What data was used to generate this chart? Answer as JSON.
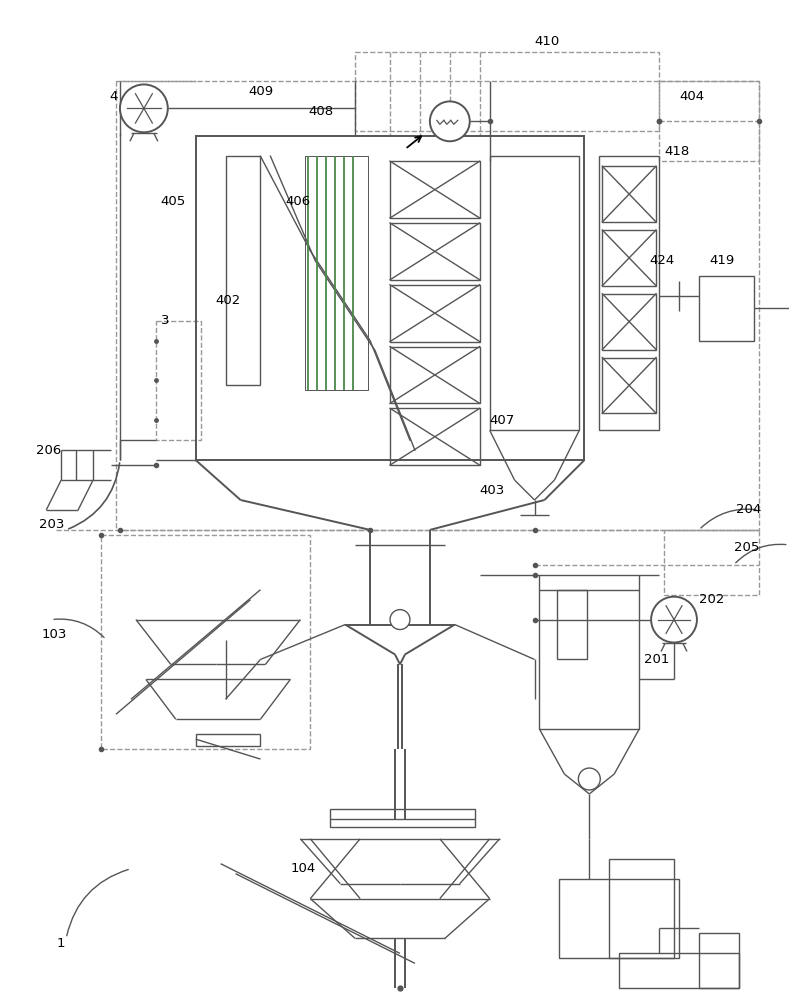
{
  "fig_width": 7.9,
  "fig_height": 10.0,
  "dpi": 100,
  "bg_color": "#ffffff",
  "lc": "#555555",
  "dc": "#999999",
  "gc": "#4a8a4a",
  "pc": "#9955bb",
  "rc": "#888888"
}
